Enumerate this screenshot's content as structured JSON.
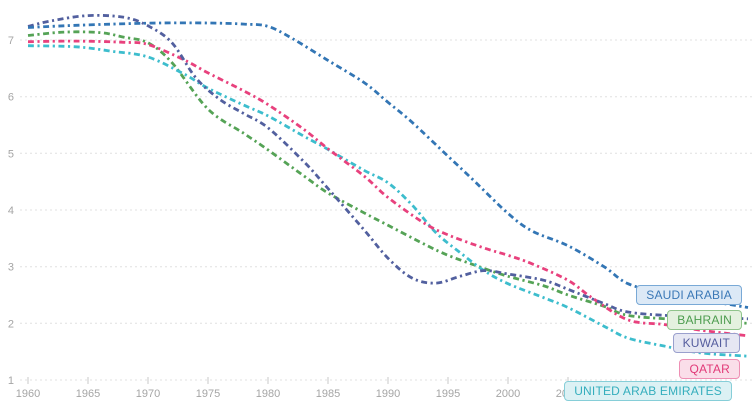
{
  "chart_data": {
    "type": "line",
    "title": "",
    "xlabel": "",
    "ylabel": "",
    "grid": "horizontal-dashed",
    "legend_position": "inside-right",
    "line_style": "dash-dot",
    "x_ticks": [
      1960,
      1965,
      1970,
      1975,
      1980,
      1985,
      1990,
      1995,
      2000,
      2005
    ],
    "y_ticks": [
      1,
      2,
      3,
      4,
      5,
      6,
      7
    ],
    "x_range": [
      1960,
      2020.6
    ],
    "y_range": [
      0.37,
      7.71
    ],
    "series": [
      {
        "label": "SAUDI ARABIA",
        "color": "#3376b5",
        "chip_bg": "#dce9f6",
        "chip_border": "#79a9d6",
        "chip_text": "#3a78b6",
        "points": [
          [
            1960,
            7.22
          ],
          [
            1963,
            7.25
          ],
          [
            1967,
            7.28
          ],
          [
            1971,
            7.3
          ],
          [
            1975,
            7.3
          ],
          [
            1978,
            7.28
          ],
          [
            1980,
            7.24
          ],
          [
            1982,
            7.03
          ],
          [
            1985,
            6.64
          ],
          [
            1988,
            6.25
          ],
          [
            1990,
            5.9
          ],
          [
            1992,
            5.55
          ],
          [
            1995,
            4.95
          ],
          [
            1997,
            4.55
          ],
          [
            2000,
            3.94
          ],
          [
            2002,
            3.63
          ],
          [
            2005,
            3.37
          ],
          [
            2008,
            3.0
          ],
          [
            2010,
            2.7
          ],
          [
            2013,
            2.53
          ],
          [
            2016,
            2.42
          ],
          [
            2020,
            2.28
          ]
        ]
      },
      {
        "label": "BAHRAIN",
        "color": "#55a356",
        "chip_bg": "#e4f1df",
        "chip_border": "#90c48b",
        "chip_text": "#4c9c4e",
        "points": [
          [
            1960,
            7.08
          ],
          [
            1963,
            7.14
          ],
          [
            1966,
            7.13
          ],
          [
            1968,
            7.05
          ],
          [
            1970,
            6.95
          ],
          [
            1972,
            6.6
          ],
          [
            1975,
            5.78
          ],
          [
            1978,
            5.35
          ],
          [
            1980,
            5.06
          ],
          [
            1983,
            4.6
          ],
          [
            1985,
            4.3
          ],
          [
            1988,
            3.95
          ],
          [
            1990,
            3.73
          ],
          [
            1993,
            3.4
          ],
          [
            1995,
            3.2
          ],
          [
            1998,
            2.97
          ],
          [
            2000,
            2.83
          ],
          [
            2003,
            2.66
          ],
          [
            2005,
            2.5
          ],
          [
            2008,
            2.3
          ],
          [
            2010,
            2.14
          ],
          [
            2014,
            2.07
          ],
          [
            2020,
            2.0
          ]
        ]
      },
      {
        "label": "KUWAIT",
        "color": "#52609f",
        "chip_bg": "#e6e7f3",
        "chip_border": "#9aa0cd",
        "chip_text": "#555d9e",
        "points": [
          [
            1960,
            7.24
          ],
          [
            1962,
            7.34
          ],
          [
            1965,
            7.43
          ],
          [
            1968,
            7.4
          ],
          [
            1970,
            7.25
          ],
          [
            1972,
            6.95
          ],
          [
            1974,
            6.33
          ],
          [
            1976,
            5.95
          ],
          [
            1978,
            5.7
          ],
          [
            1980,
            5.45
          ],
          [
            1983,
            4.85
          ],
          [
            1985,
            4.38
          ],
          [
            1988,
            3.65
          ],
          [
            1990,
            3.15
          ],
          [
            1992,
            2.8
          ],
          [
            1994,
            2.71
          ],
          [
            1996,
            2.83
          ],
          [
            1998,
            2.93
          ],
          [
            2000,
            2.87
          ],
          [
            2003,
            2.76
          ],
          [
            2005,
            2.6
          ],
          [
            2008,
            2.35
          ],
          [
            2010,
            2.2
          ],
          [
            2014,
            2.13
          ],
          [
            2020,
            2.08
          ]
        ]
      },
      {
        "label": "QATAR",
        "color": "#e8417d",
        "chip_bg": "#fadee9",
        "chip_border": "#ee8fb4",
        "chip_text": "#e13a78",
        "points": [
          [
            1960,
            6.97
          ],
          [
            1964,
            6.98
          ],
          [
            1968,
            6.96
          ],
          [
            1970,
            6.92
          ],
          [
            1973,
            6.65
          ],
          [
            1975,
            6.42
          ],
          [
            1978,
            6.1
          ],
          [
            1980,
            5.86
          ],
          [
            1983,
            5.42
          ],
          [
            1985,
            5.08
          ],
          [
            1988,
            4.6
          ],
          [
            1990,
            4.22
          ],
          [
            1993,
            3.77
          ],
          [
            1995,
            3.56
          ],
          [
            1998,
            3.33
          ],
          [
            2000,
            3.2
          ],
          [
            2002,
            3.05
          ],
          [
            2005,
            2.76
          ],
          [
            2007,
            2.45
          ],
          [
            2010,
            2.06
          ],
          [
            2013,
            1.98
          ],
          [
            2016,
            1.88
          ],
          [
            2020,
            1.78
          ]
        ]
      },
      {
        "label": "UNITED ARAB EMIRATES",
        "color": "#3dbdcd",
        "chip_bg": "#dcf1f4",
        "chip_border": "#86ced8",
        "chip_text": "#35aebd",
        "points": [
          [
            1960,
            6.9
          ],
          [
            1964,
            6.88
          ],
          [
            1967,
            6.8
          ],
          [
            1970,
            6.7
          ],
          [
            1973,
            6.4
          ],
          [
            1975,
            6.15
          ],
          [
            1978,
            5.85
          ],
          [
            1980,
            5.66
          ],
          [
            1983,
            5.3
          ],
          [
            1985,
            5.07
          ],
          [
            1988,
            4.7
          ],
          [
            1990,
            4.48
          ],
          [
            1992,
            4.09
          ],
          [
            1994,
            3.6
          ],
          [
            1996,
            3.25
          ],
          [
            1998,
            2.93
          ],
          [
            2000,
            2.7
          ],
          [
            2003,
            2.45
          ],
          [
            2005,
            2.28
          ],
          [
            2008,
            1.95
          ],
          [
            2010,
            1.74
          ],
          [
            2013,
            1.6
          ],
          [
            2016,
            1.48
          ],
          [
            2020,
            1.42
          ]
        ]
      }
    ]
  },
  "style": {
    "gridline_color": "#e0e0e0",
    "tick_color": "#c9c9c9",
    "axis_text_color": "#a5a5a5",
    "background": "#ffffff"
  }
}
